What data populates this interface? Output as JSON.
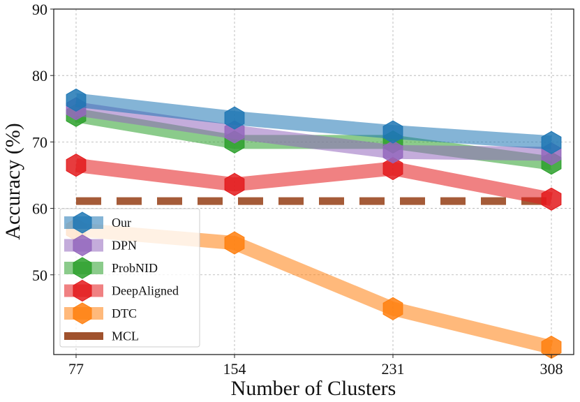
{
  "chart_data": {
    "type": "line",
    "xlabel": "Number of Clusters",
    "ylabel": "Accuracy (%)",
    "x": [
      77,
      154,
      231,
      308
    ],
    "x_tick_labels": [
      "77",
      "154",
      "231",
      "308"
    ],
    "y_tick_values": [
      50,
      60,
      70,
      80,
      90
    ],
    "y_tick_labels": [
      "50",
      "60",
      "70",
      "80",
      "90"
    ],
    "ylim": [
      38,
      90
    ],
    "grid": true,
    "legend_position": "lower-left",
    "series": [
      {
        "name": "Our",
        "values": [
          76.3,
          73.6,
          71.5,
          69.9
        ],
        "color": "#1f77b4",
        "style": "line-hexagon"
      },
      {
        "name": "DPN",
        "values": [
          75.0,
          71.5,
          68.5,
          68.2
        ],
        "color": "#9467bd",
        "style": "line-hexagon"
      },
      {
        "name": "ProbNID",
        "values": [
          74.0,
          70.0,
          70.0,
          66.8
        ],
        "color": "#2ca02c",
        "style": "line-hexagon"
      },
      {
        "name": "DeepAligned",
        "values": [
          66.5,
          63.6,
          66.0,
          61.4
        ],
        "color": "#e31a1c",
        "style": "line-hexagon"
      },
      {
        "name": "DTC",
        "values": [
          56.8,
          54.8,
          44.9,
          39.1
        ],
        "color": "#ff7f0e",
        "style": "line-hexagon"
      },
      {
        "name": "MCL",
        "values": [
          61.1,
          61.1,
          61.1,
          61.1
        ],
        "color": "#a0522d",
        "style": "dashed"
      }
    ]
  }
}
